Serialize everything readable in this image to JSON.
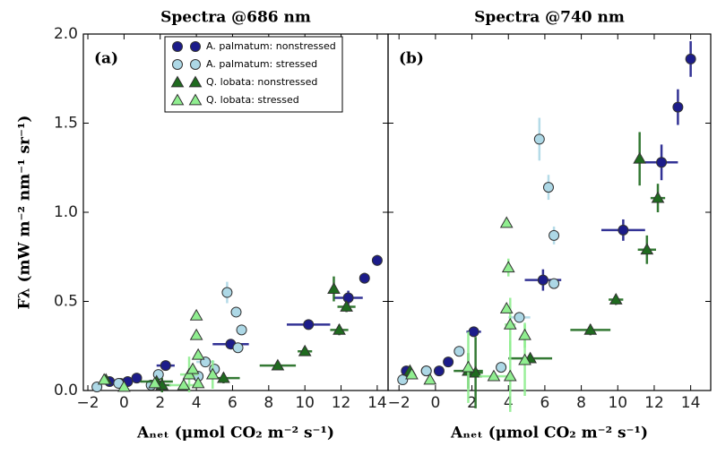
{
  "chart_data": [
    {
      "type": "scatter",
      "title": "Spectra @686 nm",
      "panel_label": "(a)",
      "xlabel": "Aₙₑₜ (μmol CO₂ m⁻² s⁻¹)",
      "ylabel": "Fλ (mW m⁻² nm⁻¹ sr⁻¹)",
      "xlim": [
        -2.25,
        14.6
      ],
      "ylim": [
        0,
        2.0
      ],
      "xticks": [
        {
          "value": -2,
          "label": "−2"
        },
        0,
        2,
        4,
        6,
        8,
        10,
        12,
        14
      ],
      "yticks": [
        {
          "value": 0,
          "label": "0.0"
        },
        {
          "value": 0.5,
          "label": "0.5"
        },
        {
          "value": 1.0,
          "label": "1.0"
        },
        {
          "value": 1.5,
          "label": "1.5"
        },
        {
          "value": 2.0,
          "label": "2.0"
        }
      ],
      "legend": "upper center",
      "series": [
        {
          "name": "A. palmatum: nonstressed",
          "color": "#1c1c8a",
          "marker": "circle",
          "x": [
            -0.8,
            -0.2,
            0.2,
            0.7,
            2.3,
            5.9,
            10.2,
            12.4,
            13.3,
            14.0
          ],
          "y": [
            0.05,
            0.04,
            0.05,
            0.07,
            0.14,
            0.26,
            0.37,
            0.52,
            0.63,
            0.73
          ],
          "xerr": [
            null,
            null,
            null,
            null,
            0.5,
            1.0,
            1.2,
            0.8,
            null,
            null
          ],
          "yerr": [
            null,
            null,
            null,
            null,
            0.01,
            0.02,
            0.02,
            0.04,
            0.03,
            0.03
          ]
        },
        {
          "name": "A. palmatum: stressed",
          "color": "#add8e6",
          "marker": "circle",
          "x": [
            -1.5,
            -0.3,
            1.5,
            1.9,
            4.1,
            4.5,
            5.0,
            5.7,
            6.2,
            6.5,
            6.3
          ],
          "y": [
            0.02,
            0.04,
            0.03,
            0.09,
            0.08,
            0.16,
            0.12,
            0.55,
            0.44,
            0.34,
            0.24
          ],
          "xerr": [
            null,
            null,
            null,
            null,
            null,
            0.5,
            null,
            null,
            null,
            null,
            null
          ],
          "yerr": [
            null,
            null,
            null,
            null,
            null,
            null,
            null,
            0.06,
            null,
            null,
            null
          ]
        },
        {
          "name": "Q. lobata: nonstressed",
          "color": "#1f6b1f",
          "marker": "triangle",
          "x": [
            -1.0,
            1.8,
            2.1,
            5.5,
            8.5,
            10.0,
            11.6,
            11.9,
            12.3
          ],
          "y": [
            0.06,
            0.05,
            0.03,
            0.07,
            0.14,
            0.22,
            0.57,
            0.34,
            0.47
          ],
          "xerr": [
            null,
            0.9,
            0.5,
            0.9,
            1.0,
            0.4,
            null,
            0.5,
            0.5
          ],
          "yerr": [
            null,
            null,
            0.04,
            0.03,
            null,
            0.02,
            0.07,
            0.03,
            0.03
          ]
        },
        {
          "name": "Q. lobata: stressed",
          "color": "#90ee90",
          "marker": "triangle",
          "x": [
            -1.1,
            0.0,
            1.7,
            3.3,
            3.6,
            3.8,
            4.0,
            4.0,
            4.1,
            4.1,
            4.9
          ],
          "y": [
            0.06,
            0.02,
            0.04,
            0.03,
            0.09,
            0.12,
            0.42,
            0.31,
            0.2,
            0.04,
            0.09
          ],
          "xerr": [
            null,
            null,
            null,
            0.8,
            0.5,
            null,
            null,
            null,
            null,
            null,
            null
          ],
          "yerr": [
            null,
            null,
            null,
            null,
            0.1,
            null,
            null,
            null,
            null,
            null,
            0.08
          ]
        }
      ]
    },
    {
      "type": "scatter",
      "title": "Spectra @740 nm",
      "panel_label": "(b)",
      "xlabel": "Aₙₑₜ (μmol CO₂ m⁻² s⁻¹)",
      "xlim": [
        -2.6,
        15.1
      ],
      "ylim": [
        0,
        2.0
      ],
      "xticks": [
        {
          "value": -2,
          "label": "−2"
        },
        0,
        2,
        4,
        6,
        8,
        10,
        12,
        14
      ],
      "series": [
        {
          "name": "A. palmatum: nonstressed",
          "color": "#1c1c8a",
          "marker": "circle",
          "x": [
            -1.6,
            -0.5,
            0.2,
            0.7,
            2.1,
            5.9,
            10.3,
            12.4,
            13.3,
            14.0
          ],
          "y": [
            0.11,
            0.11,
            0.11,
            0.16,
            0.33,
            0.62,
            0.9,
            1.28,
            1.59,
            1.86
          ],
          "xerr": [
            null,
            null,
            null,
            null,
            0.4,
            1.0,
            1.2,
            0.9,
            null,
            null
          ],
          "yerr": [
            null,
            null,
            null,
            null,
            null,
            0.06,
            0.06,
            0.1,
            0.1,
            0.1
          ]
        },
        {
          "name": "A. palmatum: stressed",
          "color": "#add8e6",
          "marker": "circle",
          "x": [
            -1.8,
            -0.5,
            1.3,
            3.6,
            4.6,
            5.7,
            6.2,
            6.5,
            6.5
          ],
          "y": [
            0.06,
            0.11,
            0.22,
            0.13,
            0.41,
            1.41,
            1.14,
            0.87,
            0.6
          ],
          "xerr": [
            null,
            null,
            null,
            0.3,
            0.6,
            null,
            null,
            null,
            null
          ],
          "yerr": [
            null,
            null,
            null,
            null,
            null,
            0.12,
            0.07,
            0.05,
            null
          ]
        },
        {
          "name": "Q. lobata: nonstressed",
          "color": "#1f6b1f",
          "marker": "triangle",
          "x": [
            -1.4,
            1.8,
            2.2,
            5.2,
            8.5,
            9.9,
            11.2,
            11.6,
            12.2
          ],
          "y": [
            0.11,
            0.11,
            0.1,
            0.18,
            0.34,
            0.51,
            1.3,
            0.79,
            1.08
          ],
          "xerr": [
            null,
            0.8,
            0.4,
            1.2,
            1.1,
            0.4,
            null,
            0.5,
            0.4
          ],
          "yerr": [
            null,
            0.1,
            0.2,
            null,
            0.03,
            0.03,
            0.15,
            0.08,
            0.08
          ]
        },
        {
          "name": "Q. lobata: stressed",
          "color": "#90ee90",
          "marker": "triangle",
          "x": [
            -1.3,
            -0.3,
            1.8,
            3.2,
            3.9,
            3.9,
            4.0,
            4.1,
            4.1,
            4.9,
            4.9
          ],
          "y": [
            0.09,
            0.06,
            0.13,
            0.08,
            0.94,
            0.46,
            0.69,
            0.37,
            0.08,
            0.31,
            0.17
          ],
          "xerr": [
            null,
            null,
            null,
            0.8,
            null,
            null,
            null,
            0.3,
            null,
            null,
            null
          ],
          "yerr": [
            null,
            null,
            0.2,
            null,
            null,
            null,
            0.05,
            0.15,
            0.2,
            0.07,
            0.2
          ]
        }
      ]
    }
  ]
}
